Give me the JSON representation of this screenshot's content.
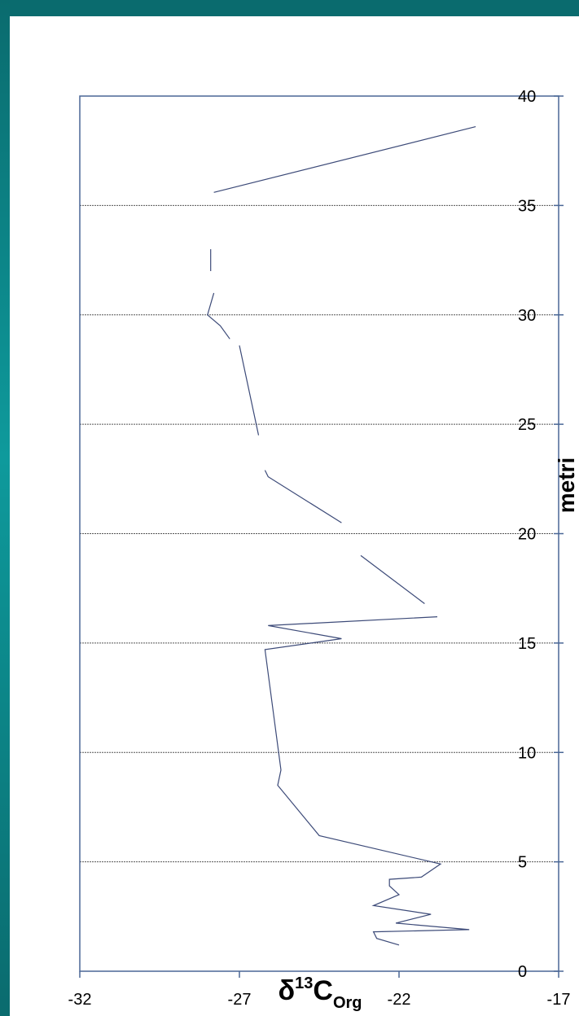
{
  "chart_data": {
    "type": "line",
    "xlabel_main": "δ",
    "xlabel_sup": "13",
    "xlabel_base": "C",
    "xlabel_sub": "Org",
    "ylabel": "metri",
    "xlim": [
      -32,
      -17
    ],
    "ylim": [
      0,
      40
    ],
    "x_ticks": [
      "-32",
      "-27",
      "-22",
      "-17"
    ],
    "y_ticks": [
      "0",
      "5",
      "10",
      "15",
      "20",
      "25",
      "30",
      "35",
      "40"
    ],
    "grid": "horizontal dashed",
    "series_color": "#3c4a78",
    "segments": [
      [
        [
          -22.0,
          1.2
        ],
        [
          -22.7,
          1.5
        ],
        [
          -22.8,
          1.8
        ],
        [
          -19.8,
          1.9
        ],
        [
          -22.1,
          2.2
        ],
        [
          -21.0,
          2.6
        ],
        [
          -22.8,
          3.0
        ],
        [
          -22.0,
          3.5
        ],
        [
          -22.3,
          3.9
        ],
        [
          -22.3,
          4.2
        ],
        [
          -21.3,
          4.3
        ],
        [
          -20.7,
          4.9
        ],
        [
          -24.5,
          6.2
        ],
        [
          -25.8,
          8.5
        ],
        [
          -25.7,
          9.2
        ],
        [
          -26.2,
          14.7
        ],
        [
          -23.8,
          15.2
        ],
        [
          -26.1,
          15.8
        ],
        [
          -20.8,
          16.2
        ]
      ],
      [
        [
          -21.2,
          16.8
        ],
        [
          -23.2,
          19.0
        ]
      ],
      [
        [
          -23.8,
          20.5
        ],
        [
          -26.1,
          22.6
        ],
        [
          -26.2,
          22.9
        ]
      ],
      [
        [
          -26.4,
          24.5
        ],
        [
          -27.0,
          28.6
        ]
      ],
      [
        [
          -27.3,
          28.9
        ],
        [
          -27.6,
          29.5
        ],
        [
          -28.0,
          30.0
        ],
        [
          -27.8,
          31.0
        ]
      ],
      [
        [
          -27.9,
          32.0
        ],
        [
          -27.9,
          33.0
        ]
      ],
      [
        [
          -27.8,
          35.6
        ],
        [
          -19.6,
          38.6
        ]
      ]
    ]
  }
}
